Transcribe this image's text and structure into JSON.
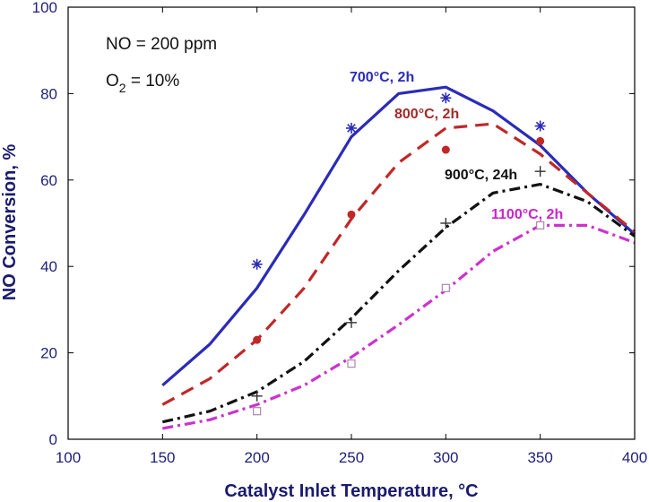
{
  "chart_data": {
    "type": "line",
    "xlabel": "Catalyst Inlet Temperature, °C",
    "ylabel": "NO Conversion, %",
    "xlim": [
      100,
      400
    ],
    "ylim": [
      0,
      100
    ],
    "xticks": [
      100,
      150,
      200,
      250,
      300,
      350,
      400
    ],
    "yticks": [
      0,
      20,
      40,
      60,
      80,
      100
    ],
    "grid": false,
    "annotations": {
      "no_prefix": "NO = 200 ppm",
      "o2_prefix": "O",
      "o2_sub": "2",
      "o2_suffix": " = 10%"
    },
    "series": [
      {
        "label": "700°C, 2h",
        "color": "#2b2bb8",
        "dash": "solid",
        "marker": "asterisk",
        "line_x": [
          150,
          175,
          200,
          225,
          250,
          275,
          300,
          325,
          350,
          375,
          400
        ],
        "line_y": [
          12.5,
          22,
          35,
          52,
          70,
          80,
          81.5,
          76,
          68,
          57,
          47.5
        ],
        "points_x": [
          200,
          250,
          300,
          350
        ],
        "points_y": [
          40.5,
          72,
          79,
          72.5
        ]
      },
      {
        "label": "800°C, 2h",
        "color": "#c02828",
        "dash": "dash",
        "marker": "circle",
        "line_x": [
          150,
          175,
          200,
          225,
          250,
          275,
          300,
          325,
          350,
          375,
          400
        ],
        "line_y": [
          8,
          14,
          23,
          35,
          51,
          64,
          72,
          73,
          66,
          57,
          48
        ],
        "points_x": [
          200,
          250,
          300,
          350
        ],
        "points_y": [
          23,
          52,
          67,
          69
        ]
      },
      {
        "label": "900°C, 24h",
        "color": "#111111",
        "dash": "dashdot",
        "marker": "plus",
        "line_x": [
          150,
          175,
          200,
          225,
          250,
          275,
          300,
          325,
          350,
          375,
          400
        ],
        "line_y": [
          4,
          6.5,
          11,
          18,
          28,
          39,
          49,
          57,
          59,
          55,
          47
        ],
        "points_x": [
          200,
          250,
          300,
          350
        ],
        "points_y": [
          10,
          27,
          50,
          62
        ]
      },
      {
        "label": "1100°C, 2h",
        "color": "#cc33cc",
        "dash": "dashdot",
        "marker": "square",
        "line_x": [
          150,
          175,
          200,
          225,
          250,
          275,
          300,
          325,
          350,
          375,
          400
        ],
        "line_y": [
          2.5,
          4.5,
          8,
          12.5,
          19,
          26.5,
          34.5,
          43.5,
          49.5,
          49.5,
          45.5
        ],
        "points_x": [
          200,
          250,
          300,
          350
        ],
        "points_y": [
          6.5,
          17.5,
          35,
          49.5
        ]
      }
    ]
  }
}
